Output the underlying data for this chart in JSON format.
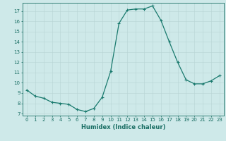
{
  "x": [
    0,
    1,
    2,
    3,
    4,
    5,
    6,
    7,
    8,
    9,
    10,
    11,
    12,
    13,
    14,
    15,
    16,
    17,
    18,
    19,
    20,
    21,
    22,
    23
  ],
  "y": [
    9.3,
    8.7,
    8.5,
    8.1,
    8.0,
    7.9,
    7.4,
    7.2,
    7.5,
    8.6,
    11.1,
    15.8,
    17.1,
    17.2,
    17.2,
    17.5,
    16.1,
    14.0,
    12.0,
    10.3,
    9.9,
    9.9,
    10.2,
    10.7
  ],
  "line_color": "#1a7a6e",
  "marker": "+",
  "marker_size": 3.5,
  "marker_lw": 0.8,
  "bg_color": "#cee9e9",
  "grid_color": "#b8d4d4",
  "xlabel": "Humidex (Indice chaleur)",
  "xlim": [
    -0.5,
    23.5
  ],
  "ylim": [
    6.8,
    17.8
  ],
  "yticks": [
    7,
    8,
    9,
    10,
    11,
    12,
    13,
    14,
    15,
    16,
    17
  ],
  "xticks": [
    0,
    1,
    2,
    3,
    4,
    5,
    6,
    7,
    8,
    9,
    10,
    11,
    12,
    13,
    14,
    15,
    16,
    17,
    18,
    19,
    20,
    21,
    22,
    23
  ],
  "font_color": "#1a6e64",
  "axis_color": "#1a6e64",
  "tick_fontsize": 5.0,
  "xlabel_fontsize": 6.0,
  "linewidth": 0.9
}
